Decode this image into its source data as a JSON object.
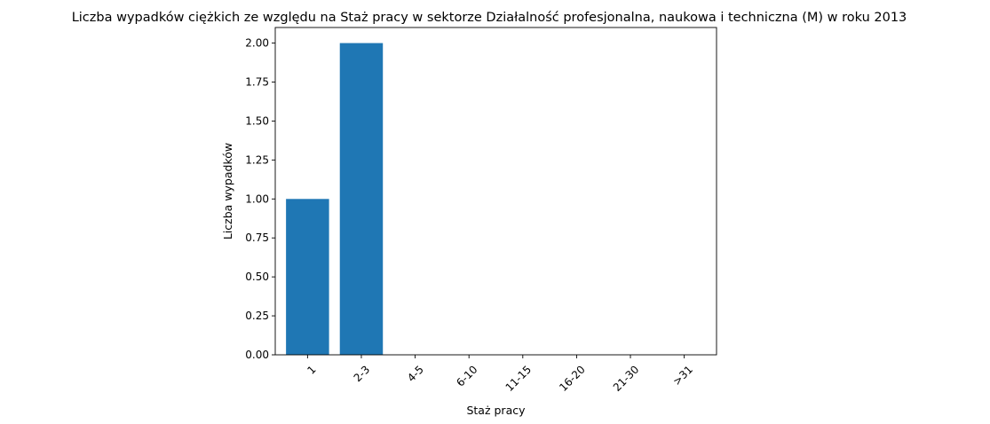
{
  "chart_data": {
    "type": "bar",
    "title": "Liczba wypadków ciężkich ze względu na Staż pracy w sektorze Działalność profesjonalna, naukowa i techniczna  (M)  w roku 2013",
    "xlabel": "Staż pracy",
    "ylabel": "Liczba wypadków",
    "categories": [
      "1",
      "2-3",
      "4-5",
      "6-10",
      "11-15",
      "16-20",
      "21-30",
      ">31"
    ],
    "values": [
      1,
      2,
      0,
      0,
      0,
      0,
      0,
      0
    ],
    "ylim": [
      0,
      2.1
    ],
    "yticks": [
      "0.00",
      "0.25",
      "0.50",
      "0.75",
      "1.00",
      "1.25",
      "1.50",
      "1.75",
      "2.00"
    ],
    "bar_color": "#1f77b4",
    "grid": false,
    "x_tick_rotation": "45°"
  }
}
